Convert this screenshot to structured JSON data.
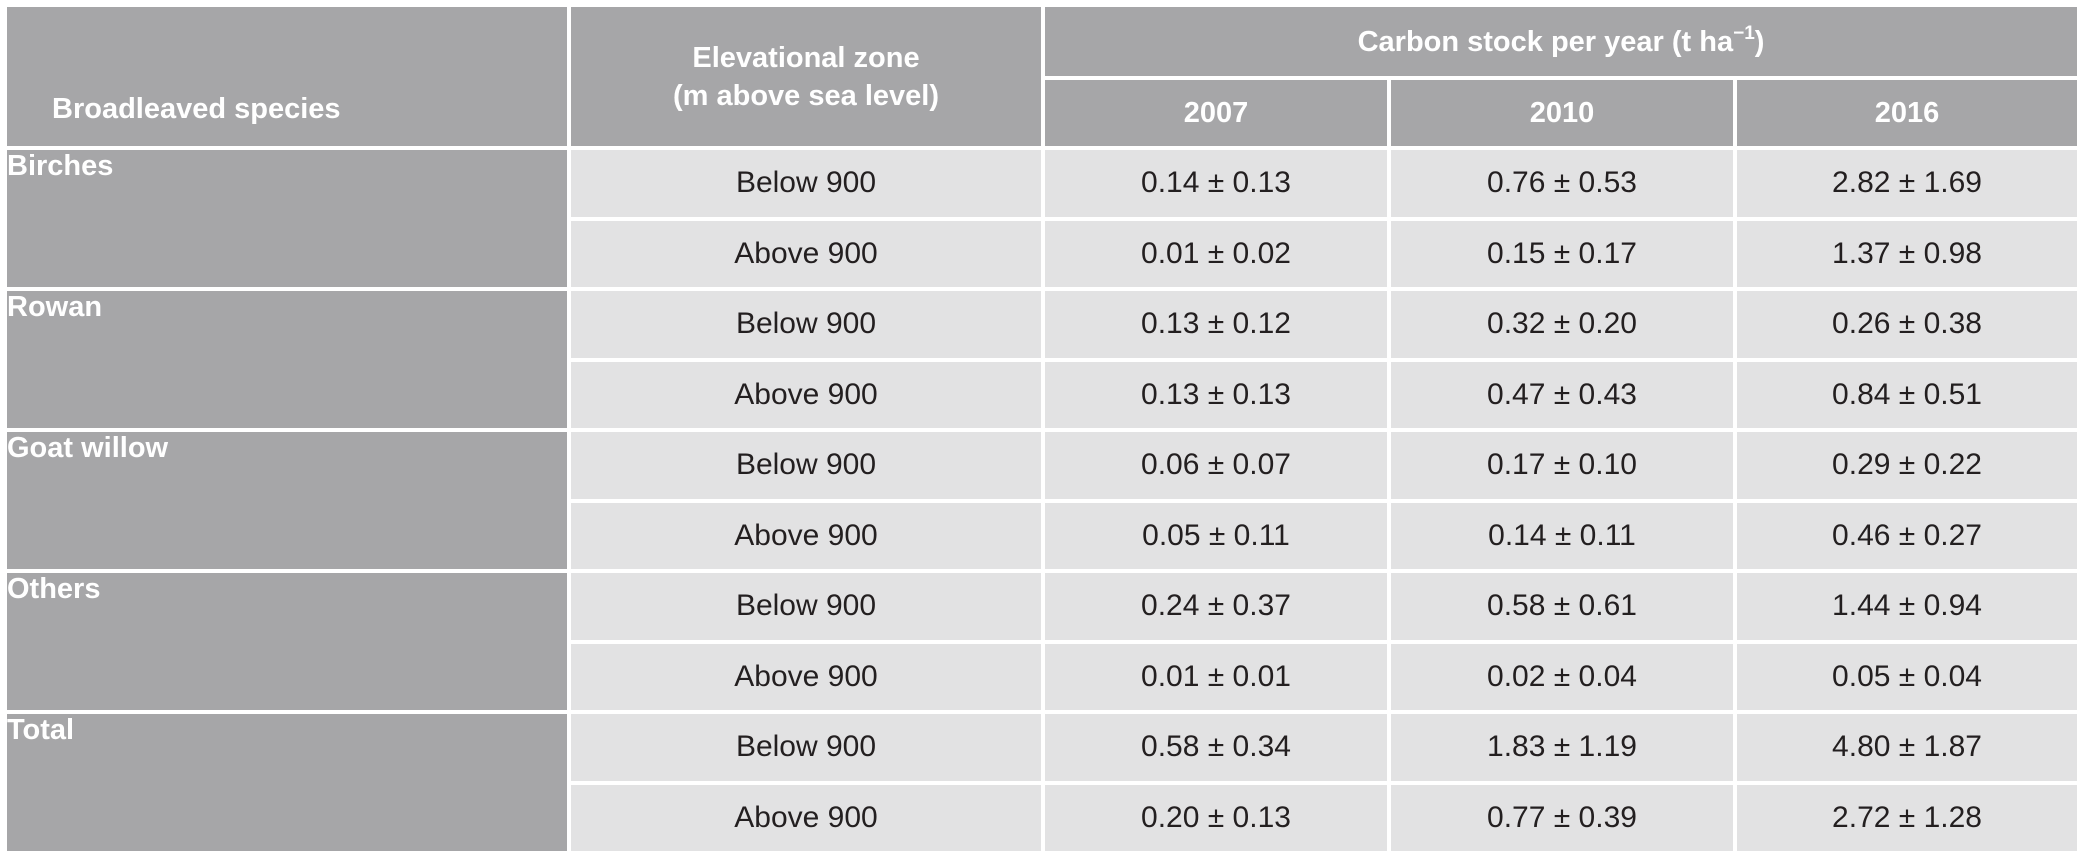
{
  "table": {
    "headers": {
      "species": "Broadleaved species",
      "zone_line1": "Elevational zone",
      "zone_line2": "(m above sea level)",
      "carbon_main": "Carbon stock per year (t ha",
      "carbon_exp": "−1",
      "carbon_close": ")",
      "years": [
        "2007",
        "2010",
        "2016"
      ]
    },
    "groups": [
      {
        "species": "Birches",
        "rows": [
          {
            "zone": "Below 900",
            "values": [
              "0.14 ± 0.13",
              "0.76 ± 0.53",
              "2.82 ± 1.69"
            ]
          },
          {
            "zone": "Above 900",
            "values": [
              "0.01 ± 0.02",
              "0.15 ± 0.17",
              "1.37 ± 0.98"
            ]
          }
        ]
      },
      {
        "species": "Rowan",
        "rows": [
          {
            "zone": "Below 900",
            "values": [
              "0.13 ± 0.12",
              "0.32 ± 0.20",
              "0.26 ± 0.38"
            ]
          },
          {
            "zone": "Above 900",
            "values": [
              "0.13 ± 0.13",
              "0.47 ± 0.43",
              "0.84 ± 0.51"
            ]
          }
        ]
      },
      {
        "species": "Goat willow",
        "rows": [
          {
            "zone": "Below 900",
            "values": [
              "0.06 ± 0.07",
              "0.17 ± 0.10",
              "0.29 ± 0.22"
            ]
          },
          {
            "zone": "Above 900",
            "values": [
              "0.05 ± 0.11",
              "0.14 ± 0.11",
              "0.46 ± 0.27"
            ]
          }
        ]
      },
      {
        "species": "Others",
        "rows": [
          {
            "zone": "Below 900",
            "values": [
              "0.24 ± 0.37",
              "0.58 ± 0.61",
              "1.44 ± 0.94"
            ]
          },
          {
            "zone": "Above 900",
            "values": [
              "0.01 ± 0.01",
              "0.02 ± 0.04",
              "0.05 ± 0.04"
            ]
          }
        ]
      },
      {
        "species": "Total",
        "rows": [
          {
            "zone": "Below 900",
            "values": [
              "0.58 ± 0.34",
              "1.83 ± 1.19",
              "4.80 ± 1.87"
            ]
          },
          {
            "zone": "Above 900",
            "values": [
              "0.20 ± 0.13",
              "0.77 ± 0.39",
              "2.72 ± 1.28"
            ]
          }
        ]
      }
    ]
  },
  "colors": {
    "header_bg": "#a6a6a8",
    "body_bg": "#e2e2e3",
    "header_text": "#ffffff",
    "body_text": "#231f20"
  }
}
